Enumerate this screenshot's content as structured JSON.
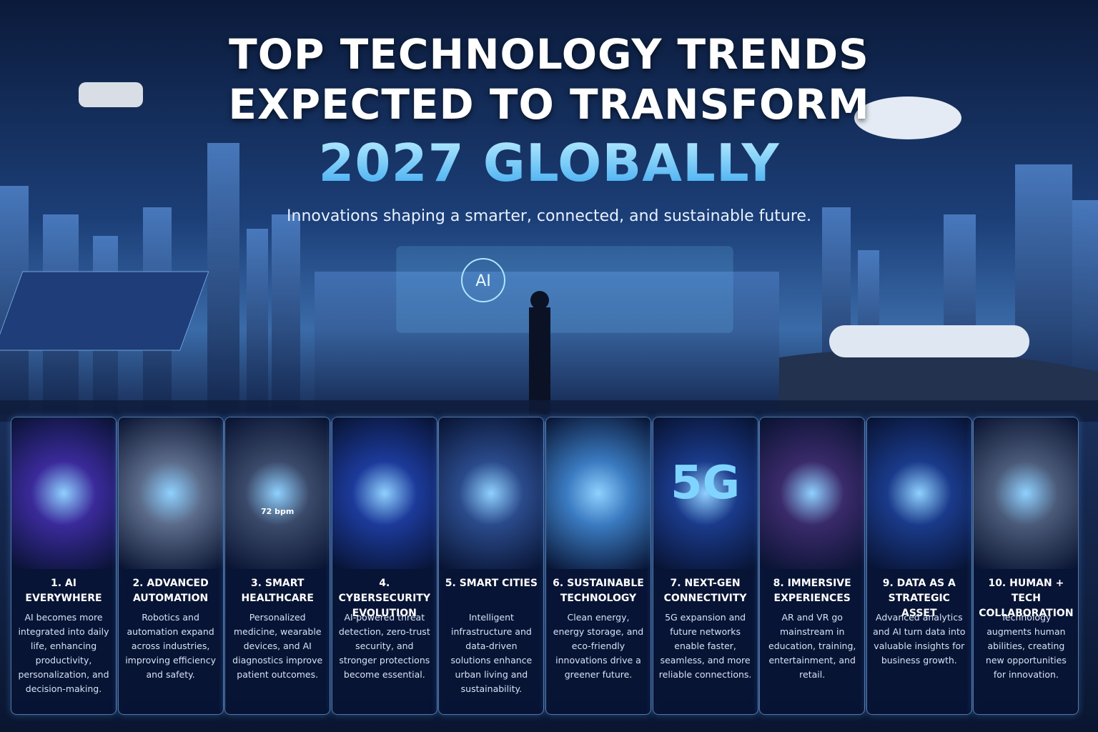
{
  "header": {
    "title_lines": [
      "TOP TECHNOLOGY TRENDS",
      "EXPECTED TO TRANSFORM",
      "2027 GLOBALLY"
    ],
    "subtitle": "Innovations shaping a smarter, connected, and sustainable future.",
    "hologram_label": "AI"
  },
  "cards": [
    {
      "title": "1. AI EVERYWHERE",
      "text": "AI becomes more integrated into daily life, enhancing productivity, personalization, and decision-making."
    },
    {
      "title": "2. ADVANCED AUTOMATION",
      "text": "Robotics and automation expand across industries, improving efficiency and safety."
    },
    {
      "title": "3. SMART HEALTHCARE",
      "text": "Personalized medicine, wearable devices, and AI diagnostics improve patient outcomes.",
      "image_text": "72 bpm"
    },
    {
      "title": "4. CYBERSECURITY EVOLUTION",
      "text": "AI-powered threat detection, zero-trust security, and stronger protections become essential."
    },
    {
      "title": "5. SMART CITIES",
      "text": "Intelligent infrastructure and data-driven solutions enhance urban living and sustainability."
    },
    {
      "title": "6. SUSTAINABLE TECHNOLOGY",
      "text": "Clean energy, energy storage, and eco-friendly innovations drive a greener future."
    },
    {
      "title": "7. NEXT-GEN CONNECTIVITY",
      "text": "5G expansion and future networks enable faster, seamless, and more reliable connections.",
      "image_text": "5G"
    },
    {
      "title": "8. IMMERSIVE EXPERIENCES",
      "text": "AR and VR go mainstream in education, training, entertainment, and retail."
    },
    {
      "title": "9. DATA AS A STRATEGIC ASSET",
      "text": "Advanced analytics and AI turn data into valuable insights for business growth."
    },
    {
      "title": "10. HUMAN + TECH COLLABORATION",
      "text": "Technology augments human abilities, creating new opportunities for innovation."
    }
  ]
}
